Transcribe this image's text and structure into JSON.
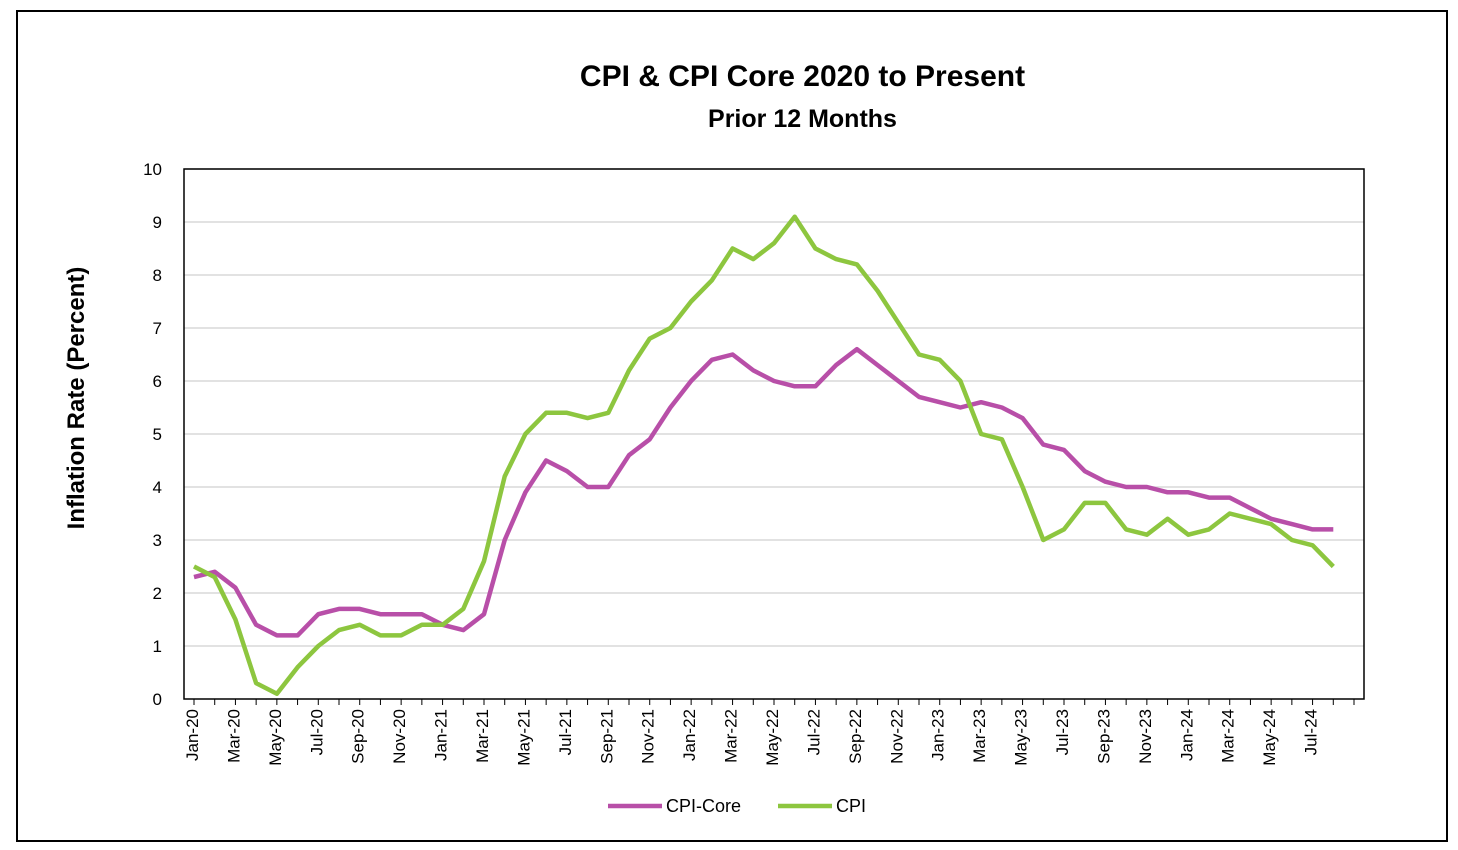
{
  "chart_data": {
    "type": "line",
    "title": "CPI & CPI Core  2020 to Present",
    "subtitle": "Prior 12 Months",
    "ylabel": "Inflation Rate (Percent)",
    "xlabel": "",
    "ylim": [
      0,
      10
    ],
    "yticks": [
      "0",
      "1",
      "2",
      "3",
      "4",
      "5",
      "6",
      "7",
      "8",
      "9",
      "10"
    ],
    "x": [
      "Jan-20",
      "Feb-20",
      "Mar-20",
      "Apr-20",
      "May-20",
      "Jun-20",
      "Jul-20",
      "Aug-20",
      "Sep-20",
      "Oct-20",
      "Nov-20",
      "Dec-20",
      "Jan-21",
      "Feb-21",
      "Mar-21",
      "Apr-21",
      "May-21",
      "Jun-21",
      "Jul-21",
      "Aug-21",
      "Sep-21",
      "Oct-21",
      "Nov-21",
      "Dec-21",
      "Jan-22",
      "Feb-22",
      "Mar-22",
      "Apr-22",
      "May-22",
      "Jun-22",
      "Jul-22",
      "Aug-22",
      "Sep-22",
      "Oct-22",
      "Nov-22",
      "Dec-22",
      "Jan-23",
      "Feb-23",
      "Mar-23",
      "Apr-23",
      "May-23",
      "Jun-23",
      "Jul-23",
      "Aug-23",
      "Sep-23",
      "Oct-23",
      "Nov-23",
      "Dec-23",
      "Jan-24",
      "Feb-24",
      "Mar-24",
      "Apr-24",
      "May-24",
      "Jun-24",
      "Jul-24",
      "Aug-24"
    ],
    "xtick_labels": [
      "Jan-20",
      "Mar-20",
      "May-20",
      "Jul-20",
      "Sep-20",
      "Nov-20",
      "Jan-21",
      "Mar-21",
      "May-21",
      "Jul-21",
      "Sep-21",
      "Nov-21",
      "Jan-22",
      "Mar-22",
      "May-22",
      "Jul-22",
      "Sep-22",
      "Nov-22",
      "Jan-23",
      "Mar-23",
      "May-23",
      "Jul-23",
      "Sep-23",
      "Nov-23",
      "Jan-24",
      "Mar-24",
      "May-24",
      "Jul-24"
    ],
    "series": [
      {
        "name": "CPI-Core",
        "color": "#b84fa8",
        "values": [
          2.3,
          2.4,
          2.1,
          1.4,
          1.2,
          1.2,
          1.6,
          1.7,
          1.7,
          1.6,
          1.6,
          1.6,
          1.4,
          1.3,
          1.6,
          3.0,
          3.9,
          4.5,
          4.3,
          4.0,
          4.0,
          4.6,
          4.9,
          5.5,
          6.0,
          6.4,
          6.5,
          6.2,
          6.0,
          5.9,
          5.9,
          6.3,
          6.6,
          6.3,
          6.0,
          5.7,
          5.6,
          5.5,
          5.6,
          5.5,
          5.3,
          4.8,
          4.7,
          4.3,
          4.1,
          4.0,
          4.0,
          3.9,
          3.9,
          3.8,
          3.8,
          3.6,
          3.4,
          3.3,
          3.2,
          3.2
        ]
      },
      {
        "name": "CPI",
        "color": "#8dc63f",
        "values": [
          2.5,
          2.3,
          1.5,
          0.3,
          0.1,
          0.6,
          1.0,
          1.3,
          1.4,
          1.2,
          1.2,
          1.4,
          1.4,
          1.7,
          2.6,
          4.2,
          5.0,
          5.4,
          5.4,
          5.3,
          5.4,
          6.2,
          6.8,
          7.0,
          7.5,
          7.9,
          8.5,
          8.3,
          8.6,
          9.1,
          8.5,
          8.3,
          8.2,
          7.7,
          7.1,
          6.5,
          6.4,
          6.0,
          5.0,
          4.9,
          4.0,
          3.0,
          3.2,
          3.7,
          3.7,
          3.2,
          3.1,
          3.4,
          3.1,
          3.2,
          3.5,
          3.4,
          3.3,
          3.0,
          2.9,
          2.5
        ]
      }
    ],
    "grid": true,
    "legend": "bottom-center"
  }
}
